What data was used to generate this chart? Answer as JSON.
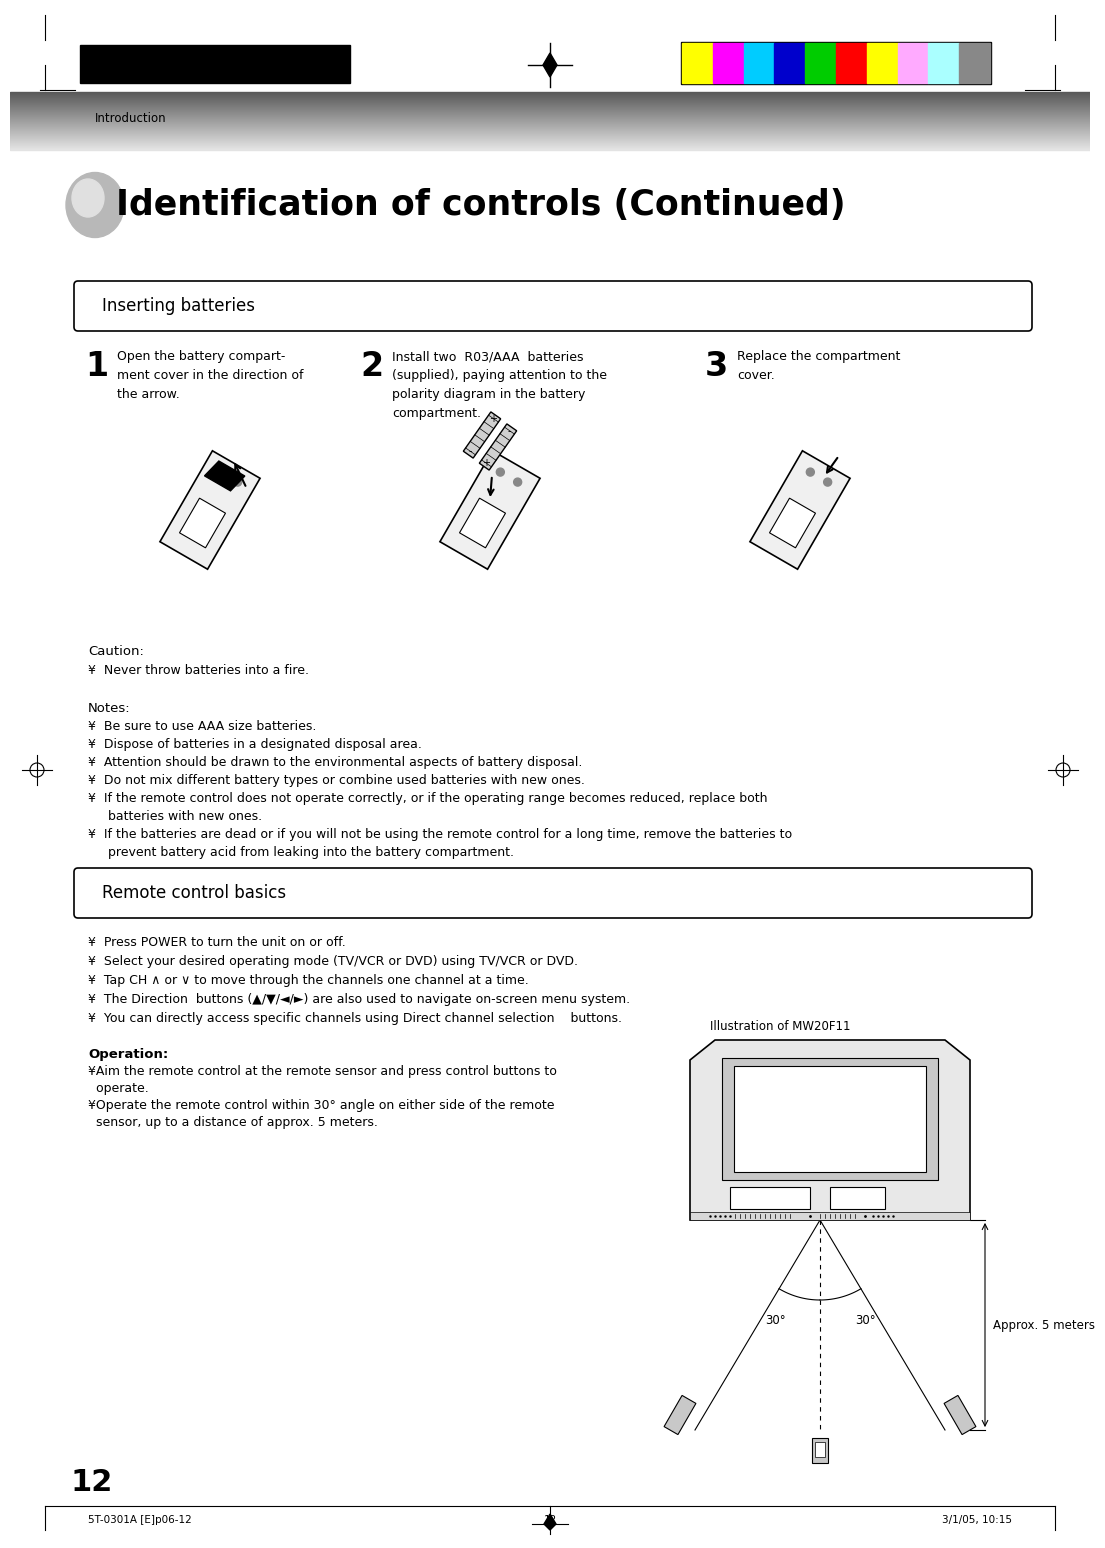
{
  "page_title": "Identification of controls (Continued)",
  "section1_title": "Inserting batteries",
  "section2_title": "Remote control basics",
  "header_label": "Introduction",
  "step1_num": "1",
  "step2_num": "2",
  "step3_num": "3",
  "step1_text": "Open the battery compart-\nment cover in the direction of\nthe arrow.",
  "step2_text": "Install two  R03/AAA  batteries\n(supplied), paying attention to the\npolarity diagram in the battery\ncompartment.",
  "step3_text": "Replace the compartment\ncover.",
  "caution_title": "Caution:",
  "caution_text": "¥  Never throw batteries into a fire.",
  "notes_title": "Notes:",
  "notes": [
    "¥  Be sure to use AAA size batteries.",
    "¥  Dispose of batteries in a designated disposal area.",
    "¥  Attention should be drawn to the environmental aspects of battery disposal.",
    "¥  Do not mix different battery types or combine used batteries with new ones.",
    "¥  If the remote control does not operate correctly, or if the operating range becomes reduced, replace both",
    "     batteries with new ones.",
    "¥  If the batteries are dead or if you will not be using the remote control for a long time, remove the batteries to",
    "     prevent battery acid from leaking into the battery compartment."
  ],
  "remote_basics": [
    "¥  Press POWER to turn the unit on or off.",
    "¥  Select your desired operating mode (TV/VCR or DVD) using TV/VCR or DVD.",
    "¥  Tap CH ∧ or ∨ to move through the channels one channel at a time.",
    "¥  The Direction  buttons (▲/▼/◄/►) are also used to navigate on-screen menu system.",
    "¥  You can directly access specific channels using Direct channel selection    buttons."
  ],
  "operation_title": "Operation:",
  "operation_line1": "¥Aim the remote control at the remote sensor and press control buttons to",
  "operation_line2": "  operate.",
  "operation_line3": "¥Operate the remote control within 30° angle on either side of the remote",
  "operation_line4": "  sensor, up to a distance of approx. 5 meters.",
  "tv_label": "Illustration of MW20F11",
  "approx_label": "Approx. 5 meters",
  "angle_label1": "30°",
  "angle_label2": "30°",
  "page_num": "12",
  "footer_left": "5T-0301A [E]p06-12",
  "footer_center": "12",
  "footer_right": "3/1/05, 10:15",
  "color_bar_colors": [
    "#ffff00",
    "#ff00ff",
    "#00ccff",
    "#0000cc",
    "#00cc00",
    "#ff0000",
    "#ffff00",
    "#ffaaff",
    "#aaffff",
    "#888888"
  ],
  "bg_color": "#ffffff"
}
